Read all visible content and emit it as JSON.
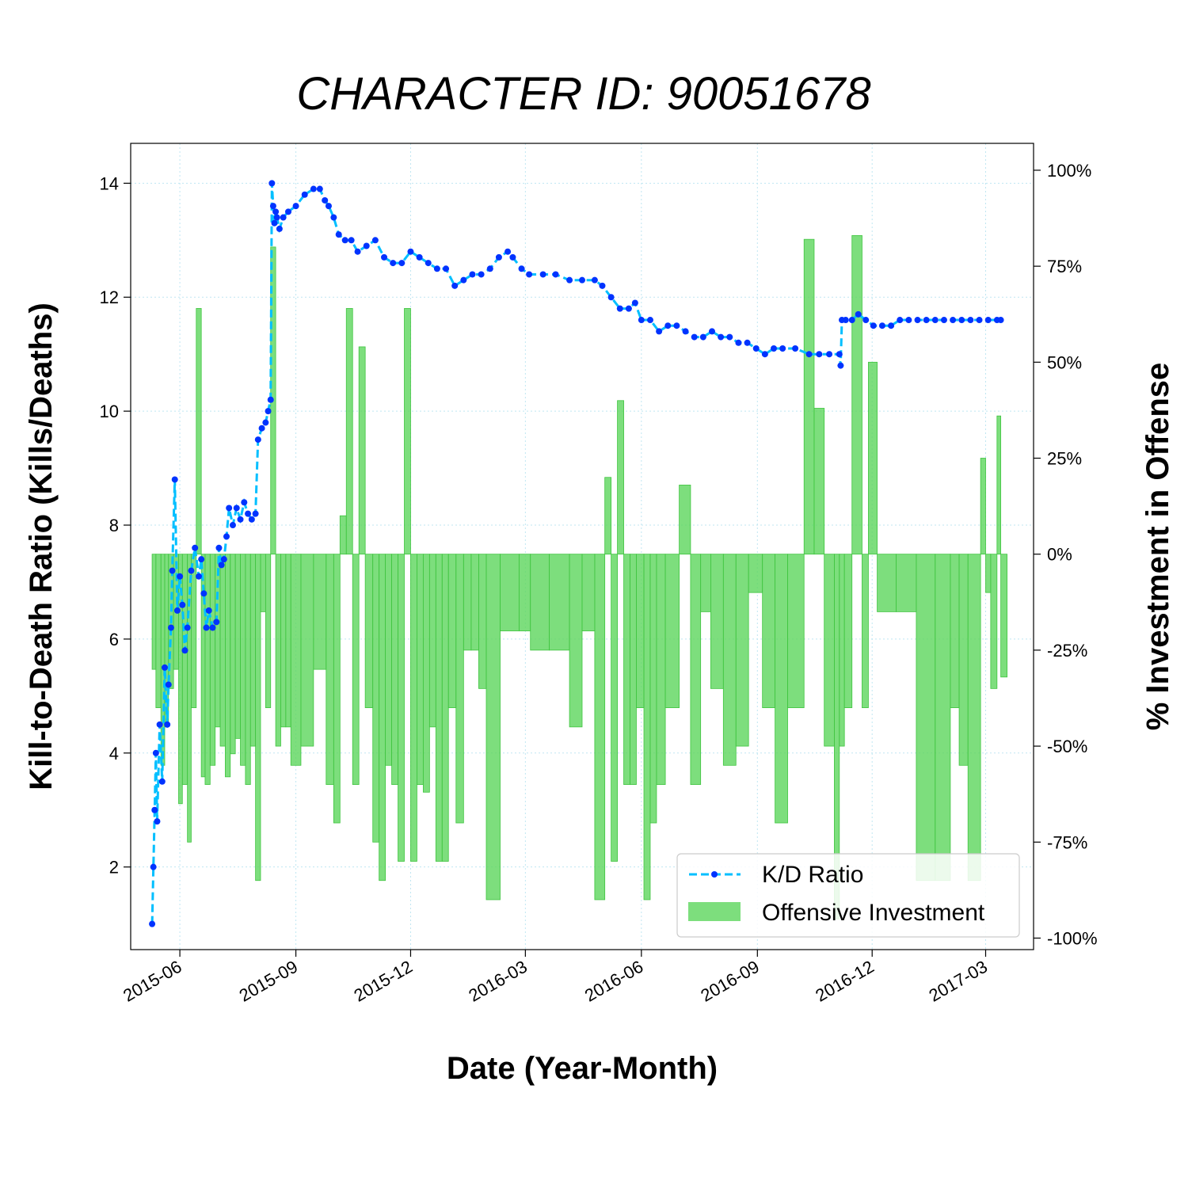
{
  "chart_data": {
    "type": "line",
    "title": "CHARACTER ID: 90051678",
    "xlabel": "Date (Year-Month)",
    "ylabel": "Kill-to-Death Ratio (Kills/Deaths)",
    "ylabel_right": "% Investment in Offense",
    "xlim": [
      "2015-04-23",
      "2017-04-08"
    ],
    "ylim": [
      0.55,
      14.7
    ],
    "ylim_right": [
      -103,
      107
    ],
    "x_ticks": [
      "2015-06",
      "2015-09",
      "2015-12",
      "2016-03",
      "2016-06",
      "2016-09",
      "2016-12",
      "2017-03"
    ],
    "y_ticks": [
      2,
      4,
      6,
      8,
      10,
      12,
      14
    ],
    "y_ticks_right": [
      "100%",
      "75%",
      "50%",
      "25%",
      "0%",
      "-25%",
      "-50%",
      "-75%",
      "-100%"
    ],
    "y_ticks_right_values": [
      100,
      75,
      50,
      25,
      0,
      -25,
      -50,
      -75,
      -100
    ],
    "grid": true,
    "legend_position": "bottom-right",
    "colors": {
      "kd_line": "#00bfff",
      "kd_marker": "#0033ff",
      "investment": "#5cd65c"
    },
    "series": [
      {
        "name": "K/D Ratio",
        "axis": "left",
        "x": [
          "2015-05-10",
          "2015-05-11",
          "2015-05-12",
          "2015-05-13",
          "2015-05-14",
          "2015-05-16",
          "2015-05-18",
          "2015-05-20",
          "2015-05-22",
          "2015-05-23",
          "2015-05-25",
          "2015-05-26",
          "2015-05-28",
          "2015-05-30",
          "2015-06-01",
          "2015-06-03",
          "2015-06-05",
          "2015-06-07",
          "2015-06-10",
          "2015-06-13",
          "2015-06-16",
          "2015-06-18",
          "2015-06-20",
          "2015-06-22",
          "2015-06-24",
          "2015-06-27",
          "2015-06-30",
          "2015-07-02",
          "2015-07-04",
          "2015-07-06",
          "2015-07-08",
          "2015-07-10",
          "2015-07-13",
          "2015-07-16",
          "2015-07-19",
          "2015-07-22",
          "2015-07-25",
          "2015-07-28",
          "2015-07-31",
          "2015-08-02",
          "2015-08-05",
          "2015-08-08",
          "2015-08-10",
          "2015-08-12",
          "2015-08-13",
          "2015-08-14",
          "2015-08-15",
          "2015-08-16",
          "2015-08-17",
          "2015-08-19",
          "2015-08-22",
          "2015-08-26",
          "2015-09-01",
          "2015-09-08",
          "2015-09-15",
          "2015-09-20",
          "2015-09-24",
          "2015-09-27",
          "2015-10-01",
          "2015-10-05",
          "2015-10-10",
          "2015-10-15",
          "2015-10-20",
          "2015-10-27",
          "2015-11-03",
          "2015-11-10",
          "2015-11-17",
          "2015-11-24",
          "2015-12-01",
          "2015-12-08",
          "2015-12-15",
          "2015-12-22",
          "2015-12-29",
          "2016-01-05",
          "2016-01-12",
          "2016-01-19",
          "2016-01-26",
          "2016-02-02",
          "2016-02-09",
          "2016-02-16",
          "2016-02-20",
          "2016-02-27",
          "2016-03-04",
          "2016-03-15",
          "2016-03-25",
          "2016-04-05",
          "2016-04-15",
          "2016-04-25",
          "2016-05-01",
          "2016-05-08",
          "2016-05-15",
          "2016-05-22",
          "2016-05-27",
          "2016-06-01",
          "2016-06-08",
          "2016-06-15",
          "2016-06-22",
          "2016-06-29",
          "2016-07-06",
          "2016-07-13",
          "2016-07-20",
          "2016-07-27",
          "2016-08-03",
          "2016-08-10",
          "2016-08-17",
          "2016-08-24",
          "2016-08-31",
          "2016-09-07",
          "2016-09-14",
          "2016-09-21",
          "2016-10-01",
          "2016-10-12",
          "2016-10-20",
          "2016-10-28",
          "2016-11-05",
          "2016-11-06",
          "2016-11-07",
          "2016-11-10",
          "2016-11-15",
          "2016-11-20",
          "2016-11-26",
          "2016-12-02",
          "2016-12-09",
          "2016-12-16",
          "2016-12-23",
          "2016-12-30",
          "2017-01-06",
          "2017-01-13",
          "2017-01-20",
          "2017-01-27",
          "2017-02-03",
          "2017-02-10",
          "2017-02-17",
          "2017-02-24",
          "2017-03-03",
          "2017-03-10",
          "2017-03-13"
        ],
        "values": [
          1.0,
          2.0,
          3.0,
          4.0,
          2.8,
          4.5,
          3.5,
          5.5,
          4.5,
          5.2,
          6.2,
          7.2,
          8.8,
          6.5,
          7.1,
          6.6,
          5.8,
          6.2,
          7.2,
          7.6,
          7.1,
          7.4,
          6.8,
          6.2,
          6.5,
          6.2,
          6.3,
          7.6,
          7.3,
          7.4,
          7.8,
          8.3,
          8.0,
          8.3,
          8.1,
          8.4,
          8.2,
          8.1,
          8.2,
          9.5,
          9.7,
          9.8,
          10.0,
          10.2,
          14.0,
          13.6,
          13.3,
          13.5,
          13.4,
          13.2,
          13.4,
          13.5,
          13.6,
          13.8,
          13.9,
          13.9,
          13.7,
          13.6,
          13.4,
          13.1,
          13.0,
          13.0,
          12.8,
          12.9,
          13.0,
          12.7,
          12.6,
          12.6,
          12.8,
          12.7,
          12.6,
          12.5,
          12.5,
          12.2,
          12.3,
          12.4,
          12.4,
          12.5,
          12.7,
          12.8,
          12.7,
          12.5,
          12.4,
          12.4,
          12.4,
          12.3,
          12.3,
          12.3,
          12.2,
          12.0,
          11.8,
          11.8,
          11.9,
          11.6,
          11.6,
          11.4,
          11.5,
          11.5,
          11.4,
          11.3,
          11.3,
          11.4,
          11.3,
          11.3,
          11.2,
          11.2,
          11.1,
          11.0,
          11.1,
          11.1,
          11.1,
          11.0,
          11.0,
          11.0,
          11.0,
          10.8,
          11.6,
          11.6,
          11.6,
          11.7,
          11.6,
          11.5,
          11.5,
          11.5,
          11.6,
          11.6,
          11.6,
          11.6,
          11.6,
          11.6,
          11.6,
          11.6,
          11.6,
          11.6,
          11.6,
          11.6,
          11.6
        ]
      },
      {
        "name": "Offensive Investment",
        "axis": "right",
        "type": "bar",
        "x": [
          "2015-05-10",
          "2015-05-13",
          "2015-05-17",
          "2015-05-20",
          "2015-05-23",
          "2015-05-27",
          "2015-05-31",
          "2015-06-03",
          "2015-06-07",
          "2015-06-10",
          "2015-06-14",
          "2015-06-18",
          "2015-06-21",
          "2015-06-25",
          "2015-06-29",
          "2015-07-03",
          "2015-07-07",
          "2015-07-11",
          "2015-07-15",
          "2015-07-19",
          "2015-07-23",
          "2015-07-27",
          "2015-07-31",
          "2015-08-04",
          "2015-08-08",
          "2015-08-12",
          "2015-08-16",
          "2015-08-20",
          "2015-08-24",
          "2015-08-28",
          "2015-09-05",
          "2015-09-15",
          "2015-09-25",
          "2015-10-01",
          "2015-10-06",
          "2015-10-11",
          "2015-10-16",
          "2015-10-21",
          "2015-10-26",
          "2015-11-01",
          "2015-11-06",
          "2015-11-11",
          "2015-11-16",
          "2015-11-21",
          "2015-11-26",
          "2015-12-01",
          "2015-12-06",
          "2015-12-11",
          "2015-12-16",
          "2015-12-21",
          "2015-12-26",
          "2015-12-31",
          "2016-01-06",
          "2016-01-12",
          "2016-01-18",
          "2016-01-24",
          "2016-01-30",
          "2016-02-10",
          "2016-02-25",
          "2016-03-05",
          "2016-03-20",
          "2016-04-05",
          "2016-04-15",
          "2016-04-25",
          "2016-05-03",
          "2016-05-08",
          "2016-05-13",
          "2016-05-18",
          "2016-05-23",
          "2016-05-28",
          "2016-06-03",
          "2016-06-08",
          "2016-06-13",
          "2016-06-20",
          "2016-07-01",
          "2016-07-10",
          "2016-07-18",
          "2016-07-26",
          "2016-08-05",
          "2016-08-15",
          "2016-08-25",
          "2016-09-05",
          "2016-09-15",
          "2016-09-25",
          "2016-10-08",
          "2016-10-16",
          "2016-10-24",
          "2016-11-01",
          "2016-11-05",
          "2016-11-09",
          "2016-11-15",
          "2016-11-23",
          "2016-11-28",
          "2016-12-05",
          "2016-12-20",
          "2017-01-05",
          "2017-01-20",
          "2017-02-01",
          "2017-02-08",
          "2017-02-15",
          "2017-02-25",
          "2017-03-01",
          "2017-03-05",
          "2017-03-10",
          "2017-03-13"
        ],
        "values": [
          -30,
          -40,
          -55,
          -45,
          -35,
          -30,
          -65,
          -60,
          -75,
          -40,
          64,
          -58,
          -60,
          -55,
          -45,
          -50,
          -58,
          -52,
          -48,
          -55,
          -60,
          -50,
          -85,
          -15,
          -40,
          80,
          -50,
          -45,
          -45,
          -55,
          -50,
          -30,
          -60,
          -70,
          10,
          64,
          -60,
          54,
          -40,
          -75,
          -85,
          -55,
          -60,
          -80,
          64,
          -80,
          -60,
          -62,
          -45,
          -80,
          -80,
          -40,
          -70,
          -25,
          -25,
          -35,
          -90,
          -20,
          -20,
          -25,
          -25,
          -45,
          -20,
          -90,
          20,
          -80,
          40,
          -60,
          -60,
          -40,
          -90,
          -70,
          -60,
          -40,
          18,
          -60,
          -15,
          -35,
          -55,
          -50,
          -10,
          -40,
          -70,
          -40,
          82,
          38,
          -50,
          -95,
          -50,
          -40,
          83,
          -40,
          50,
          -15,
          -15,
          -85,
          -85,
          -40,
          -55,
          -85,
          25,
          -10,
          -35,
          36,
          -32
        ]
      }
    ]
  }
}
